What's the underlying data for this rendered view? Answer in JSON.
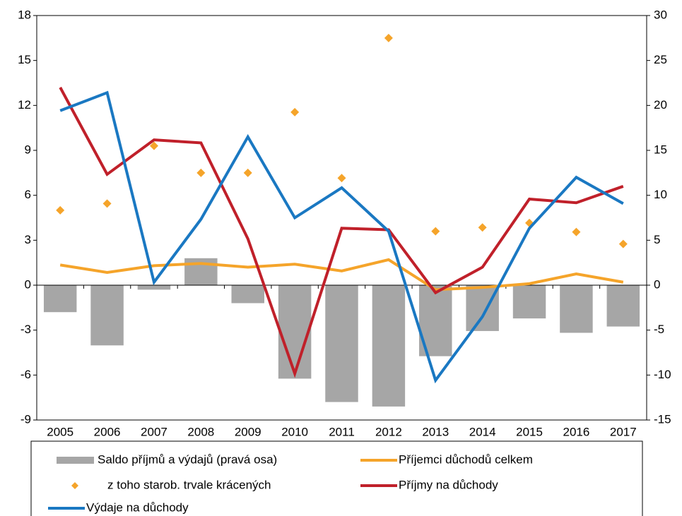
{
  "chart_data": {
    "type": "combo",
    "categories": [
      "2005",
      "2006",
      "2007",
      "2008",
      "2009",
      "2010",
      "2011",
      "2012",
      "2013",
      "2014",
      "2015",
      "2016",
      "2017"
    ],
    "ylim": [
      -9,
      18
    ],
    "yticks": [
      -9,
      -6,
      -3,
      0,
      3,
      6,
      9,
      12,
      15,
      18
    ],
    "y2lim": [
      -15,
      30
    ],
    "y2ticks": [
      -15,
      -10,
      -5,
      0,
      5,
      10,
      15,
      20,
      25,
      30
    ],
    "grid": false,
    "legend": "bottom",
    "series": [
      {
        "name": "Saldo příjmů a výdajů (pravá osa)",
        "type": "bar",
        "axis": "y2",
        "color": "#a6a6a6",
        "values": [
          -3.0,
          -6.7,
          -0.5,
          3.0,
          -2.0,
          -10.4,
          -13.0,
          -13.5,
          -7.9,
          -5.1,
          -3.7,
          -5.3,
          -4.6
        ]
      },
      {
        "name": "Příjemci důchodů celkem",
        "type": "line",
        "color": "#f5a42a",
        "values": [
          1.35,
          0.85,
          1.3,
          1.45,
          1.2,
          1.4,
          0.95,
          1.7,
          -0.3,
          -0.15,
          0.1,
          0.75,
          0.2
        ]
      },
      {
        "name": "z toho starob. trvale krácených",
        "type": "scatter",
        "color": "#f5a42a",
        "values": [
          5.0,
          5.45,
          9.3,
          7.5,
          7.5,
          11.55,
          7.15,
          16.5,
          3.6,
          3.85,
          4.15,
          3.55,
          2.75
        ]
      },
      {
        "name": "Příjmy na důchody",
        "type": "line",
        "color": "#c0202a",
        "values": [
          13.2,
          7.4,
          9.7,
          9.5,
          3.1,
          -5.9,
          3.8,
          3.7,
          -0.5,
          1.2,
          5.75,
          5.5,
          6.6
        ]
      },
      {
        "name": "Výdaje na důchody",
        "type": "line",
        "color": "#1a78c2",
        "values": [
          11.65,
          12.85,
          0.2,
          4.4,
          9.9,
          4.5,
          6.5,
          3.6,
          -6.35,
          -2.1,
          3.8,
          7.2,
          5.45
        ]
      }
    ]
  }
}
